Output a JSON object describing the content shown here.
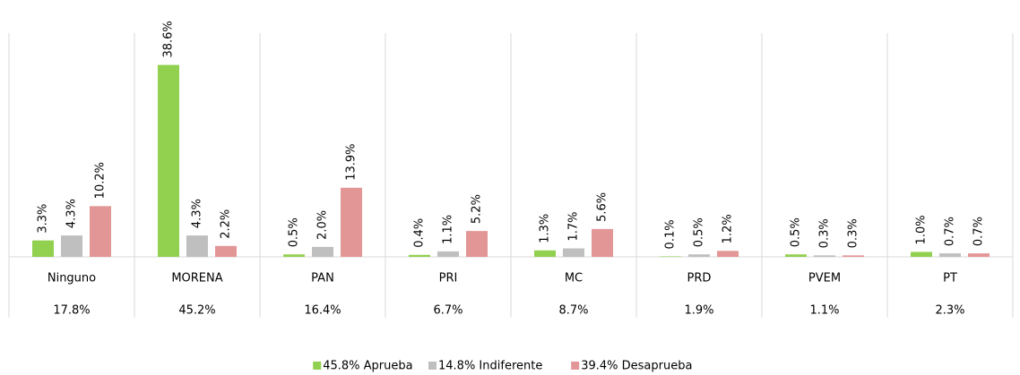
{
  "chart_data": {
    "type": "bar",
    "categories": [
      "Ninguno",
      "MORENA",
      "PAN",
      "PRI",
      "MC",
      "PRD",
      "PVEM",
      "PT"
    ],
    "category_totals": [
      "17.8%",
      "45.2%",
      "16.4%",
      "6.7%",
      "8.7%",
      "1.9%",
      "1.1%",
      "2.3%"
    ],
    "series": [
      {
        "name": "45.8% Aprueba",
        "color": "#92d050",
        "values": [
          3.3,
          38.6,
          0.5,
          0.4,
          1.3,
          0.1,
          0.5,
          1.0
        ],
        "value_labels": [
          "3.3%",
          "38.6%",
          "0.5%",
          "0.4%",
          "1.3%",
          "0.1%",
          "0.5%",
          "1.0%"
        ]
      },
      {
        "name": "14.8% Indiferente",
        "color": "#bfbfbf",
        "values": [
          4.3,
          4.3,
          2.0,
          1.1,
          1.7,
          0.5,
          0.3,
          0.7
        ],
        "value_labels": [
          "4.3%",
          "4.3%",
          "2.0%",
          "1.1%",
          "1.7%",
          "0.5%",
          "0.3%",
          "0.7%"
        ]
      },
      {
        "name": "39.4% Desaprueba",
        "color": "#e39696",
        "values": [
          10.2,
          2.2,
          13.9,
          5.2,
          5.6,
          1.2,
          0.3,
          0.7
        ],
        "value_labels": [
          "10.2%",
          "2.2%",
          "13.9%",
          "5.2%",
          "5.6%",
          "1.2%",
          "0.3%",
          "0.7%"
        ]
      }
    ],
    "ylim": [
      0,
      45
    ],
    "legend": "bottom"
  }
}
